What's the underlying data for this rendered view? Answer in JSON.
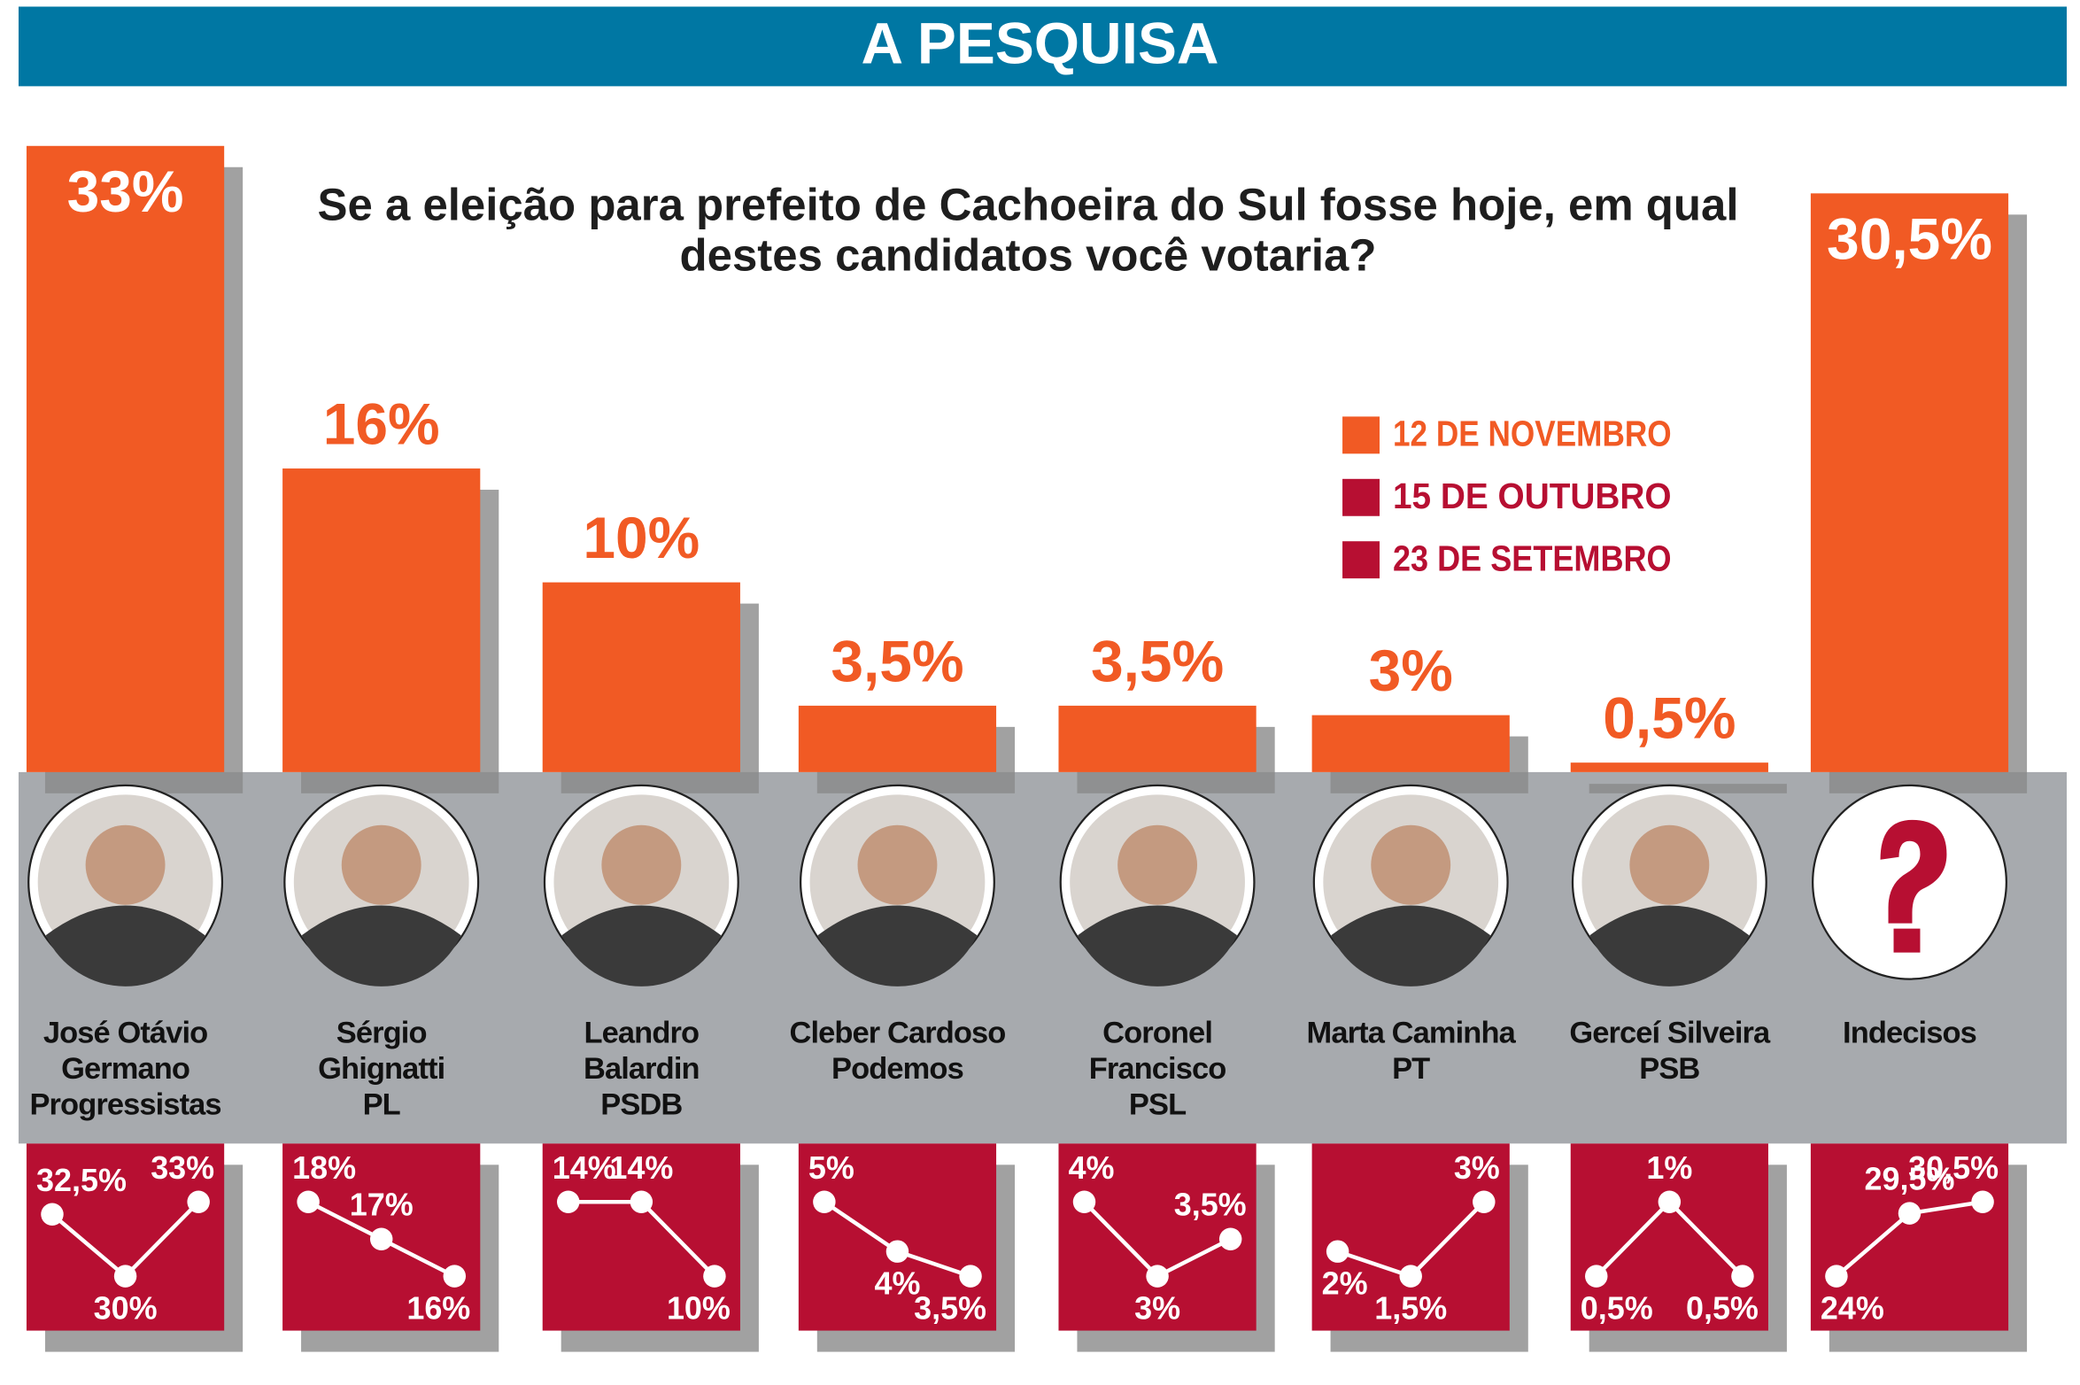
{
  "header": {
    "title": "A PESQUISA"
  },
  "chart_data": {
    "type": "bar",
    "title": "Se a eleição para prefeito de Cachoeira do Sul fosse hoje, em qual destes candidatos você votaria?",
    "categories": [
      "José Otávio Germano",
      "Sérgio Ghignatti",
      "Leandro Balardin",
      "Cleber Cardoso",
      "Coronel Francisco",
      "Marta Caminha",
      "Gerceí Silveira",
      "Indecisos"
    ],
    "parties": [
      "Progressistas",
      "PL",
      "PSDB",
      "Podemos",
      "PSL",
      "PT",
      "PSB",
      null
    ],
    "ylim": [
      0,
      33
    ],
    "legend": "upper right",
    "series": [
      {
        "name": "12 DE NOVEMBRO",
        "color": "#f15a24",
        "values": [
          33,
          16,
          10,
          3.5,
          3.5,
          3,
          0.5,
          30.5
        ],
        "value_labels": [
          "33%",
          "16%",
          "10%",
          "3,5%",
          "3,5%",
          "3%",
          "0,5%",
          "30,5%"
        ]
      },
      {
        "name": "15 DE OUTUBRO",
        "color": "#b70f32",
        "values": [
          30,
          17,
          14,
          4,
          3,
          1.5,
          1,
          29.5
        ],
        "value_labels": [
          "30%",
          "17%",
          "14%",
          "4%",
          "3%",
          "1,5%",
          "1%",
          "29,5%"
        ]
      },
      {
        "name": "23 DE SETEMBRO",
        "color": "#b70f32",
        "values": [
          32.5,
          18,
          14,
          5,
          4,
          2,
          0.5,
          24
        ],
        "value_labels": [
          "32,5%",
          "18%",
          "14%",
          "5%",
          "4%",
          "2%",
          "0,5%",
          "24%"
        ]
      }
    ]
  }
}
